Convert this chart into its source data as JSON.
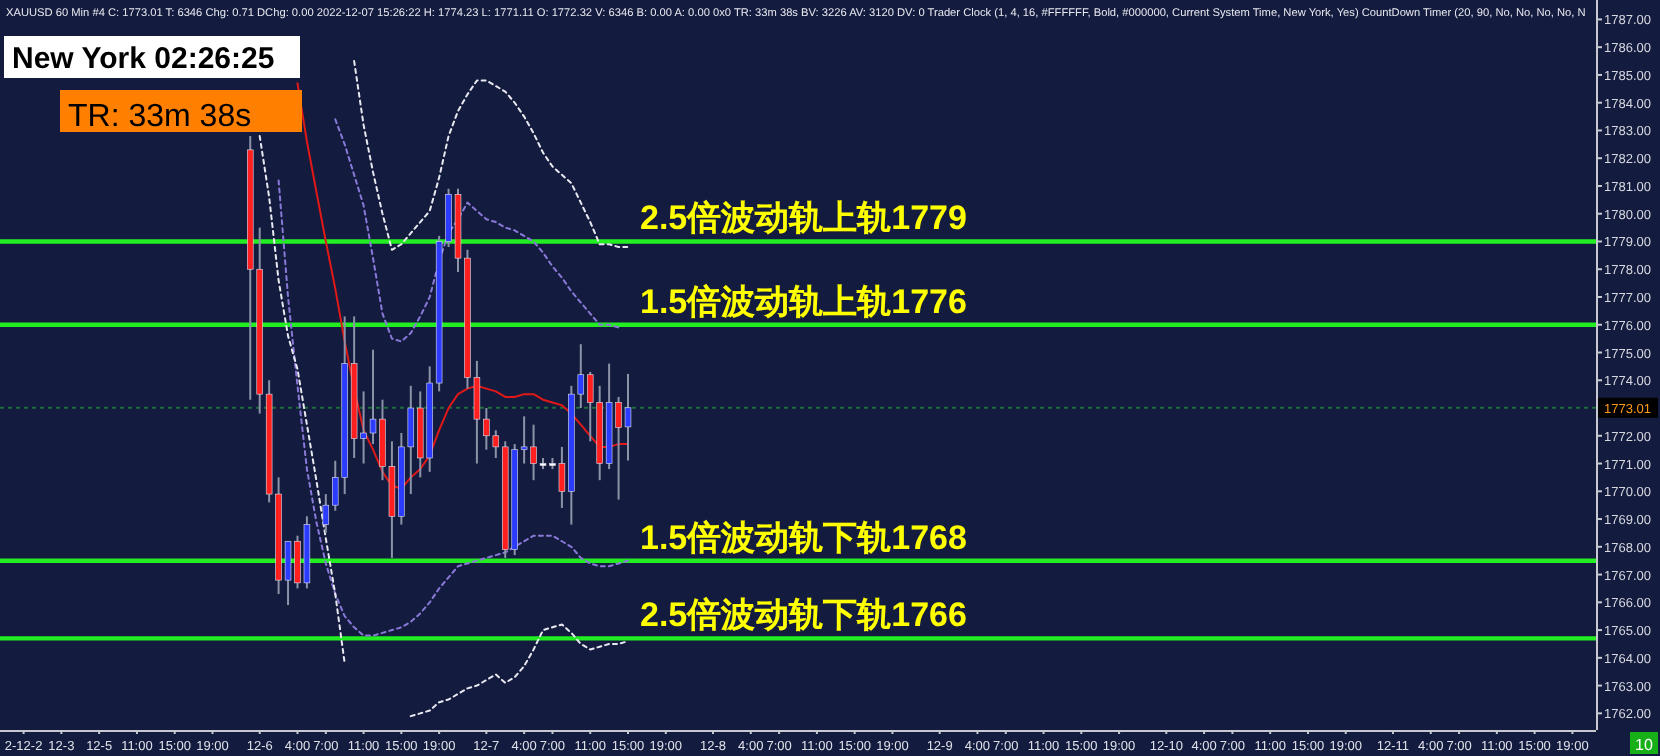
{
  "chart_data": {
    "type": "candlestick",
    "annotations": [
      "XAUUSD  60 Min  #4  C: 1773.01  T: 6346  Chg: 0.71  DChg: 0.00  2022-12-07 15:26:22 H: 1774.23 L: 1771.11 O: 1772.32 V: 6346 B: 0.00 A: 0.00 0x0 TR: 33m 38s BV: 3226 AV: 3120 DV: 0 Trader Clock   (1, 4, 16, #FFFFFF, Bold, #000000, Current System Time, New York, Yes)  CountDown Timer  (20, 90, No, No, No, No, N",
      "New York 02:26:25",
      "TR: 33m 38s",
      "10"
    ],
    "categories": [
      null,
      null,
      "2-12-2",
      null,
      null,
      null,
      "12-3",
      null,
      null,
      null,
      "12-5",
      null,
      null,
      null,
      "11:00",
      null,
      null,
      null,
      "15:00",
      null,
      null,
      null,
      "19:00",
      null,
      null,
      null,
      null,
      "12-6",
      null,
      null,
      null,
      "4:00",
      null,
      null,
      "7:00",
      null,
      null,
      null,
      "11:00",
      null,
      null,
      null,
      "15:00",
      null,
      null,
      null,
      "19:00",
      null,
      null,
      null,
      null,
      "12-7",
      null,
      null,
      null,
      "4:00",
      null,
      null,
      "7:00",
      null,
      null,
      null,
      "11:00",
      null,
      null,
      null,
      "15:00",
      null,
      null,
      null,
      "19:00",
      null,
      null,
      null,
      null,
      "12-8",
      null,
      null,
      null,
      "4:00",
      null,
      null,
      "7:00",
      null,
      null,
      null,
      "11:00",
      null,
      null,
      null,
      "15:00",
      null,
      null,
      null,
      "19:00",
      null,
      null,
      null,
      null,
      "12-9",
      null,
      null,
      null,
      "4:00",
      null,
      null,
      "7:00",
      null,
      null,
      null,
      "11:00",
      null,
      null,
      null,
      "15:00",
      null,
      null,
      null,
      "19:00",
      null,
      null,
      null,
      null,
      "12-10",
      null,
      null,
      null,
      "4:00",
      null,
      null,
      "7:00",
      null,
      null,
      null,
      "11:00",
      null,
      null,
      null,
      "15:00",
      null,
      null,
      null,
      "19:00",
      null,
      null,
      null,
      null,
      "12-11",
      null,
      null,
      null,
      "4:00",
      null,
      null,
      "7:00",
      null,
      null,
      null,
      "11:00",
      null,
      null,
      null,
      "15:00",
      null,
      null,
      null,
      "19:00",
      null,
      null
    ],
    "ohlc": [
      null,
      null,
      null,
      null,
      null,
      null,
      null,
      null,
      null,
      null,
      null,
      null,
      null,
      null,
      null,
      null,
      null,
      null,
      null,
      null,
      null,
      null,
      null,
      null,
      null,
      null,
      [
        1782.3,
        1782.8,
        1773.3,
        1778.0
      ],
      [
        1778.0,
        1779.5,
        1772.8,
        1773.5
      ],
      [
        1773.5,
        1774.0,
        1769.6,
        1769.9
      ],
      [
        1769.9,
        1770.5,
        1766.3,
        1766.8
      ],
      [
        1766.8,
        1768.2,
        1765.9,
        1768.2
      ],
      [
        1768.2,
        1768.4,
        1766.5,
        1766.7
      ],
      [
        1766.7,
        1769.1,
        1766.5,
        1768.8
      ],
      null,
      [
        1768.8,
        1769.9,
        1768.5,
        1769.5
      ],
      [
        1769.5,
        1771.1,
        1769.3,
        1770.5
      ],
      [
        1770.5,
        1776.3,
        1769.9,
        1774.6
      ],
      [
        1774.6,
        1776.3,
        1771.2,
        1771.9
      ],
      [
        1771.9,
        1773.6,
        1771.0,
        1772.1
      ],
      [
        1772.1,
        1775.1,
        1771.7,
        1772.6
      ],
      [
        1772.6,
        1773.3,
        1770.4,
        1770.9
      ],
      [
        1770.9,
        1771.8,
        1767.6,
        1769.1
      ],
      [
        1769.1,
        1772.1,
        1768.8,
        1771.6
      ],
      [
        1771.6,
        1773.8,
        1769.9,
        1773.0
      ],
      [
        1773.0,
        1773.6,
        1770.5,
        1771.2
      ],
      [
        1771.2,
        1774.5,
        1770.7,
        1773.9
      ],
      [
        1773.9,
        1779.2,
        1773.6,
        1779.0
      ],
      [
        1779.0,
        1780.9,
        1778.8,
        1780.7
      ],
      [
        1780.7,
        1780.9,
        1777.9,
        1778.4
      ],
      [
        1778.4,
        1778.7,
        1773.7,
        1774.1
      ],
      [
        1774.1,
        1774.7,
        1771.0,
        1772.6
      ],
      [
        1772.6,
        1773.0,
        1771.5,
        1772.0
      ],
      [
        1772.0,
        1772.2,
        1771.2,
        1771.6
      ],
      [
        1771.6,
        1771.8,
        1767.6,
        1767.9
      ],
      [
        1767.9,
        1771.7,
        1767.7,
        1771.5
      ],
      [
        1771.5,
        1772.7,
        1771.0,
        1771.6
      ],
      [
        1771.6,
        1772.4,
        1770.4,
        1771.0
      ],
      [
        1771.0,
        1771.2,
        1770.8,
        1771.0
      ],
      [
        1771.0,
        1771.2,
        1770.8,
        1771.0
      ],
      [
        1771.0,
        1771.6,
        1769.4,
        1770.0
      ],
      [
        1770.0,
        1773.8,
        1768.8,
        1773.5
      ],
      [
        1773.5,
        1775.3,
        1773.0,
        1774.2
      ],
      [
        1774.2,
        1774.3,
        1771.8,
        1773.2
      ],
      [
        1773.2,
        1773.8,
        1770.4,
        1771.0
      ],
      [
        1771.0,
        1774.6,
        1770.8,
        1773.2
      ],
      [
        1773.2,
        1773.4,
        1769.7,
        1772.3
      ],
      [
        1772.32,
        1774.23,
        1771.11,
        1773.01
      ],
      null,
      null,
      null,
      null,
      null,
      null,
      null,
      null,
      null,
      null,
      null,
      null,
      null,
      null,
      null,
      null,
      null,
      null,
      null,
      null,
      null,
      null,
      null,
      null,
      null,
      null,
      null,
      null,
      null,
      null,
      null,
      null,
      null,
      null,
      null,
      null,
      null,
      null,
      null,
      null,
      null,
      null,
      null,
      null,
      null,
      null,
      null,
      null,
      null,
      null,
      null,
      null,
      null,
      null,
      null,
      null,
      null,
      null,
      null,
      null,
      null,
      null,
      null,
      null,
      null,
      null,
      null,
      null,
      null,
      null,
      null,
      null,
      null,
      null,
      null,
      null,
      null,
      null,
      null,
      null,
      null,
      null,
      null,
      null,
      null,
      null,
      null,
      null,
      null,
      null,
      null,
      null,
      null,
      null,
      null,
      null,
      null,
      null,
      null,
      null,
      null,
      null
    ],
    "series": [
      {
        "type": "line",
        "color": "#e01818",
        "line_style": "solid",
        "values": [
          null,
          null,
          null,
          null,
          null,
          null,
          null,
          null,
          null,
          null,
          null,
          null,
          null,
          null,
          null,
          null,
          null,
          null,
          null,
          null,
          null,
          null,
          null,
          null,
          null,
          null,
          null,
          null,
          null,
          null,
          null,
          1784.7,
          1782.6,
          1780.8,
          1779.0,
          1777.3,
          1775.4,
          1773.7,
          1772.2,
          1771.5,
          1770.7,
          1770.2,
          1770.1,
          1770.5,
          1770.8,
          1771.3,
          1772.2,
          1773.0,
          1773.5,
          1773.7,
          1773.8,
          1773.7,
          1773.6,
          1773.4,
          1773.4,
          1773.5,
          1773.5,
          1773.3,
          1773.2,
          1773.1,
          1772.8,
          1772.4,
          1772.0,
          1771.6,
          1771.6,
          1771.7,
          1771.7,
          null,
          null,
          null,
          null,
          null,
          null,
          null,
          null,
          null,
          null,
          null,
          null,
          null,
          null,
          null,
          null,
          null,
          null,
          null,
          null,
          null,
          null,
          null,
          null,
          null,
          null,
          null,
          null,
          null,
          null,
          null,
          null,
          null,
          null,
          null,
          null,
          null,
          null,
          null,
          null,
          null,
          null,
          null,
          null,
          null,
          null,
          null,
          null,
          null,
          null,
          null,
          null,
          null,
          null,
          null,
          null,
          null,
          null,
          null,
          null,
          null,
          null,
          null,
          null,
          null,
          null,
          null,
          null,
          null,
          null,
          null,
          null,
          null,
          null,
          null,
          null,
          null,
          null,
          null,
          null,
          null,
          null,
          null,
          null,
          null,
          null,
          null,
          null,
          null,
          null,
          null,
          null,
          null,
          null,
          null,
          null,
          null,
          null,
          null,
          null,
          null,
          null
        ]
      },
      {
        "type": "line",
        "color": "#8a78d8",
        "line_style": "dotted",
        "values": [
          null,
          null,
          null,
          null,
          null,
          null,
          null,
          null,
          null,
          null,
          null,
          null,
          null,
          null,
          null,
          null,
          null,
          null,
          null,
          null,
          null,
          null,
          null,
          null,
          null,
          null,
          null,
          null,
          null,
          null,
          null,
          null,
          null,
          null,
          null,
          1783.4,
          1782.5,
          1781.4,
          1780.3,
          1778.4,
          1776.4,
          1775.5,
          1775.4,
          1775.7,
          1776.3,
          1777.0,
          1778.3,
          1779.3,
          1779.8,
          1780.4,
          1780.1,
          1779.8,
          1779.7,
          1779.5,
          1779.4,
          1779.2,
          1779.0,
          1778.6,
          1778.1,
          1777.7,
          1777.2,
          1776.8,
          1776.4,
          1776.0,
          1776.0,
          1775.9,
          null,
          null,
          null,
          null,
          null,
          null,
          null,
          null,
          null,
          null,
          null,
          null,
          null,
          null,
          null,
          null,
          null,
          null,
          null,
          null,
          null,
          null,
          null,
          null,
          null,
          null,
          null,
          null,
          null,
          null,
          null,
          null,
          null,
          null,
          null,
          null,
          null,
          null,
          null,
          null,
          null,
          null,
          null,
          null,
          null,
          null,
          null,
          null,
          null,
          null,
          null,
          null,
          null,
          null,
          null,
          null,
          null,
          null,
          null,
          null,
          null,
          null,
          null,
          null,
          null,
          null,
          null,
          null,
          null,
          null,
          null,
          null,
          null,
          null,
          null,
          null,
          null,
          null,
          null,
          null,
          null,
          null,
          null,
          null,
          null,
          null,
          null,
          null,
          null,
          null,
          null,
          null,
          null,
          null,
          null,
          null,
          null,
          null,
          null,
          null,
          null,
          null,
          null
        ]
      },
      {
        "type": "line",
        "color": "#e8e8f0",
        "line_style": "dotted",
        "values": [
          null,
          null,
          null,
          null,
          null,
          null,
          null,
          null,
          null,
          null,
          null,
          null,
          null,
          null,
          null,
          null,
          null,
          null,
          null,
          null,
          null,
          null,
          null,
          null,
          null,
          null,
          null,
          null,
          null,
          null,
          null,
          null,
          null,
          null,
          null,
          null,
          null,
          1785.5,
          1783.2,
          1781.5,
          1780.0,
          1778.7,
          1778.9,
          1779.3,
          1779.7,
          1780.1,
          1781.3,
          1782.8,
          1783.7,
          1784.3,
          1784.8,
          1784.8,
          1784.6,
          1784.4,
          1784.0,
          1783.5,
          1782.9,
          1782.2,
          1781.7,
          1781.4,
          1781.1,
          1780.4,
          1779.7,
          1778.9,
          1778.9,
          1778.8,
          1778.8,
          null,
          null,
          null,
          null,
          null,
          null,
          null,
          null,
          null,
          null,
          null,
          null,
          null,
          null,
          null,
          null,
          null,
          null,
          null,
          null,
          null,
          null,
          null,
          null,
          null,
          null,
          null,
          null,
          null,
          null,
          null,
          null,
          null,
          null,
          null,
          null,
          null,
          null,
          null,
          null,
          null,
          null,
          null,
          null,
          null,
          null,
          null,
          null,
          null,
          null,
          null,
          null,
          null,
          null,
          null,
          null,
          null,
          null,
          null,
          null,
          null,
          null,
          null,
          null,
          null,
          null,
          null,
          null,
          null,
          null,
          null,
          null,
          null,
          null,
          null,
          null,
          null,
          null,
          null,
          null,
          null,
          null,
          null,
          null,
          null,
          null,
          null,
          null,
          null,
          null,
          null,
          null,
          null,
          null,
          null,
          null,
          null,
          null,
          null,
          null,
          null,
          null
        ]
      },
      {
        "type": "line",
        "color": "#8a78d8",
        "line_style": "dotted",
        "values": [
          null,
          null,
          null,
          null,
          null,
          null,
          null,
          null,
          null,
          null,
          null,
          null,
          null,
          null,
          null,
          null,
          null,
          null,
          null,
          null,
          null,
          null,
          null,
          null,
          null,
          null,
          null,
          null,
          null,
          1781.2,
          1777.0,
          1773.8,
          1770.8,
          1768.9,
          1767.4,
          1766.3,
          1765.5,
          1765.1,
          1764.8,
          1764.8,
          1764.9,
          1765.0,
          1765.1,
          1765.3,
          1765.6,
          1766.0,
          1766.5,
          1766.9,
          1767.3,
          1767.4,
          1767.5,
          1767.6,
          1767.7,
          1767.8,
          1768.0,
          1768.2,
          1768.4,
          1768.4,
          1768.4,
          1768.2,
          1768.0,
          1767.6,
          1767.4,
          1767.3,
          1767.3,
          1767.4,
          1767.5,
          null,
          null,
          null,
          null,
          null,
          null,
          null,
          null,
          null,
          null,
          null,
          null,
          null,
          null,
          null,
          null,
          null,
          null,
          null,
          null,
          null,
          null,
          null,
          null,
          null,
          null,
          null,
          null,
          null,
          null,
          null,
          null,
          null,
          null,
          null,
          null,
          null,
          null,
          null,
          null,
          null,
          null,
          null,
          null,
          null,
          null,
          null,
          null,
          null,
          null,
          null,
          null,
          null,
          null,
          null,
          null,
          null,
          null,
          null,
          null,
          null,
          null,
          null,
          null,
          null,
          null,
          null,
          null,
          null,
          null,
          null,
          null,
          null,
          null,
          null,
          null,
          null,
          null,
          null,
          null,
          null,
          null,
          null,
          null,
          null,
          null,
          null,
          null,
          null,
          null,
          null,
          null,
          null,
          null,
          null,
          null,
          null,
          null,
          null,
          null,
          null,
          null
        ]
      },
      {
        "type": "line",
        "color": "#e8e8f0",
        "line_style": "dotted",
        "values": [
          null,
          null,
          null,
          null,
          null,
          null,
          null,
          null,
          null,
          null,
          null,
          null,
          null,
          null,
          null,
          null,
          null,
          null,
          null,
          null,
          null,
          null,
          null,
          null,
          null,
          null,
          null,
          1782.8,
          1780.6,
          1777.6,
          1775.6,
          1774.4,
          1772.4,
          1770.4,
          1768.3,
          1766.3,
          1763.8,
          null,
          null,
          null,
          null,
          null,
          null,
          1761.9,
          1762.0,
          1762.1,
          1762.4,
          1762.5,
          1762.7,
          1762.9,
          1763.0,
          1763.2,
          1763.4,
          1763.1,
          1763.3,
          1763.7,
          1764.3,
          1765.0,
          1765.1,
          1765.2,
          1764.9,
          1764.5,
          1764.3,
          1764.4,
          1764.5,
          1764.5,
          1764.6,
          null,
          null,
          null,
          null,
          null,
          null,
          null,
          null,
          null,
          null,
          null,
          null,
          null,
          null,
          null,
          null,
          null,
          null,
          null,
          null,
          null,
          null,
          null,
          null,
          null,
          null,
          null,
          null,
          null,
          null,
          null,
          null,
          null,
          null,
          null,
          null,
          null,
          null,
          null,
          null,
          null,
          null,
          null,
          null,
          null,
          null,
          null,
          null,
          null,
          null,
          null,
          null,
          null,
          null,
          null,
          null,
          null,
          null,
          null,
          null,
          null,
          null,
          null,
          null,
          null,
          null,
          null,
          null,
          null,
          null,
          null,
          null,
          null,
          null,
          null,
          null,
          null,
          null,
          null,
          null,
          null,
          null,
          null,
          null,
          null,
          null,
          null,
          null,
          null,
          null,
          null,
          null,
          null,
          null,
          null,
          null,
          null,
          null,
          null,
          null,
          null,
          null
        ]
      }
    ],
    "ref_lines": [
      {
        "axis": "y",
        "value": 1779,
        "label": "2.5倍波动轨上轨1779",
        "color": "#22ee22",
        "line_style": "solid"
      },
      {
        "axis": "y",
        "value": 1776,
        "label": "1.5倍波动轨上轨1776",
        "color": "#22ee22",
        "line_style": "solid"
      },
      {
        "axis": "y",
        "value": 1767.5,
        "label": "1.5倍波动轨下轨1768",
        "color": "#22ee22",
        "line_style": "solid"
      },
      {
        "axis": "y",
        "value": 1764.7,
        "label": "2.5倍波动轨下轨1766",
        "color": "#22ee22",
        "line_style": "solid"
      },
      {
        "axis": "y",
        "value": 1773.01,
        "label": "1773.01",
        "color": "#1f6b3a",
        "line_style": "dotted"
      }
    ],
    "ylim": [
      1761.4,
      1787.7
    ],
    "yticks": [
      {
        "value": 1762,
        "label": "1762.00"
      },
      {
        "value": 1763,
        "label": "1763.00"
      },
      {
        "value": 1764,
        "label": "1764.00"
      },
      {
        "value": 1765,
        "label": "1765.00"
      },
      {
        "value": 1766,
        "label": "1766.00"
      },
      {
        "value": 1767,
        "label": "1767.00"
      },
      {
        "value": 1768,
        "label": "1768.00"
      },
      {
        "value": 1769,
        "label": "1769.00"
      },
      {
        "value": 1770,
        "label": "1770.00"
      },
      {
        "value": 1771,
        "label": "1771.00"
      },
      {
        "value": 1772,
        "label": "1772.00"
      },
      {
        "value": 1774,
        "label": "1774.00"
      },
      {
        "value": 1775,
        "label": "1775.00"
      },
      {
        "value": 1776,
        "label": "1776.00"
      },
      {
        "value": 1777,
        "label": "1777.00"
      },
      {
        "value": 1778,
        "label": "1778.00"
      },
      {
        "value": 1779,
        "label": "1779.00"
      },
      {
        "value": 1780,
        "label": "1780.00"
      },
      {
        "value": 1781,
        "label": "1781.00"
      },
      {
        "value": 1782,
        "label": "1782.00"
      },
      {
        "value": 1783,
        "label": "1783.00"
      },
      {
        "value": 1784,
        "label": "1784.00"
      },
      {
        "value": 1785,
        "label": "1785.00"
      },
      {
        "value": 1786,
        "label": "1786.00"
      },
      {
        "value": 1787,
        "label": "1787.00"
      }
    ],
    "grid": false
  }
}
